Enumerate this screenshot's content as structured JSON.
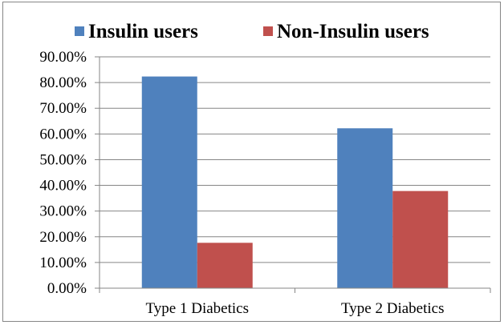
{
  "chart_data": {
    "type": "bar",
    "categories": [
      "Type 1 Diabetics",
      "Type 2 Diabetics"
    ],
    "series": [
      {
        "name": "Insulin users",
        "values": [
          82.35,
          62.2
        ],
        "color": "#4F81BD"
      },
      {
        "name": "Non-Insulin users",
        "values": [
          17.65,
          37.8
        ],
        "color": "#C0504D"
      }
    ],
    "ylim": [
      0,
      90
    ],
    "yticks": [
      0,
      10,
      20,
      30,
      40,
      50,
      60,
      70,
      80,
      90
    ],
    "ytick_labels": [
      "0.00%",
      "10.00%",
      "20.00%",
      "30.00%",
      "40.00%",
      "50.00%",
      "60.00%",
      "70.00%",
      "80.00%",
      "90.00%"
    ],
    "grid": true,
    "legend_position": "top",
    "title": "",
    "xlabel": "",
    "ylabel": ""
  }
}
